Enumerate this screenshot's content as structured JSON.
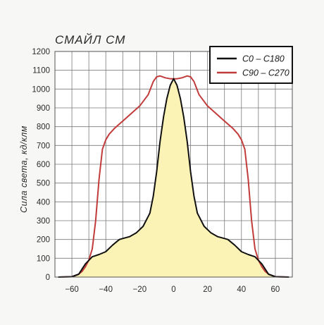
{
  "chart_data": {
    "type": "line",
    "title": "СМАЙЛ СМ",
    "xlabel": "",
    "ylabel": "Сила света, кд/клм",
    "xlim": [
      -70,
      70
    ],
    "ylim": [
      0,
      1200
    ],
    "xticks": [
      -60,
      -40,
      -20,
      0,
      20,
      40,
      60
    ],
    "yticks": [
      0,
      100,
      200,
      300,
      400,
      500,
      600,
      700,
      800,
      900,
      1000,
      1100,
      1200
    ],
    "grid": true,
    "legend_position": "top-right",
    "series": [
      {
        "name": "C0 – C180",
        "color": "#111111",
        "fill": "#fbf3b5",
        "x": [
          -68,
          -60,
          -56,
          -52,
          -48,
          -44,
          -40,
          -36,
          -32,
          -30,
          -26,
          -22,
          -18,
          -14,
          -12,
          -10,
          -8,
          -6,
          -4,
          -2,
          0,
          2,
          4,
          6,
          8,
          10,
          12,
          14,
          18,
          22,
          26,
          30,
          32,
          36,
          40,
          44,
          48,
          52,
          56,
          60,
          68
        ],
        "y": [
          0,
          2,
          15,
          70,
          108,
          120,
          135,
          170,
          200,
          205,
          215,
          235,
          270,
          340,
          430,
          560,
          720,
          850,
          950,
          1020,
          1055,
          1020,
          950,
          850,
          720,
          560,
          430,
          340,
          270,
          235,
          215,
          205,
          200,
          170,
          135,
          120,
          108,
          70,
          15,
          2,
          0
        ]
      },
      {
        "name": "C90 – C270",
        "color": "#c23b3b",
        "x": [
          -68,
          -60,
          -56,
          -54,
          -52,
          -50,
          -48,
          -46,
          -44,
          -42,
          -40,
          -38,
          -35,
          -30,
          -25,
          -20,
          -15,
          -12,
          -10,
          -8,
          -5,
          -2,
          0,
          2,
          5,
          8,
          10,
          12,
          15,
          20,
          25,
          30,
          35,
          38,
          40,
          42,
          44,
          46,
          48,
          50,
          52,
          54,
          56,
          60,
          68
        ],
        "y": [
          0,
          2,
          15,
          30,
          55,
          90,
          150,
          300,
          520,
          680,
          730,
          760,
          790,
          830,
          870,
          910,
          970,
          1040,
          1065,
          1070,
          1060,
          1055,
          1055,
          1055,
          1060,
          1070,
          1065,
          1040,
          970,
          910,
          870,
          830,
          790,
          760,
          730,
          680,
          520,
          300,
          150,
          90,
          55,
          30,
          15,
          2,
          0
        ]
      }
    ]
  }
}
